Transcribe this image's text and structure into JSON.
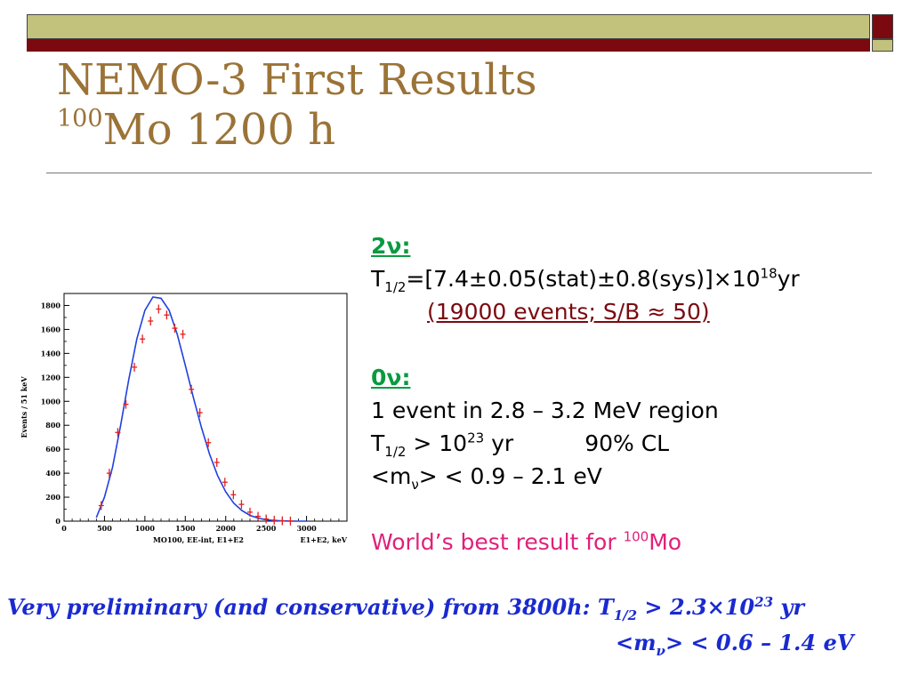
{
  "header": {
    "colors": {
      "olive": "#c3c27d",
      "maroon": "#7a0a10"
    }
  },
  "title": {
    "line1": "NEMO-3 First Results",
    "line2_sup": "100",
    "line2": "Mo 1200 h"
  },
  "two_nu": {
    "heading_num": "2",
    "heading_sym": "ν",
    "heading_colon": ":",
    "t_label": "T",
    "t_sub": "1/2",
    "t_value": "=[7.4±0.05(stat)±0.8(sys)]×10",
    "t_exp": "18",
    "t_unit": "yr",
    "events": "(19000 events; S/B ≈ 50)"
  },
  "zero_nu": {
    "heading_num": "0",
    "heading_sym": "ν",
    "heading_colon": ":",
    "events_line": "1 event in 2.8 – 3.2 MeV region",
    "t_label": "T",
    "t_sub": "1/2",
    "t_value": " > 10",
    "t_exp": "23",
    "t_unit": " yr",
    "cl": "90% CL",
    "m_open": "<m",
    "m_sub": "ν",
    "m_close": "> < 0.9 – 2.1 eV"
  },
  "world_best": {
    "text": "World’s best result for ",
    "sup": "100",
    "elem": "Mo"
  },
  "preliminary": {
    "line1_text": "Very preliminary (and conservative) from 3800h: T",
    "line1_sub": "1/2",
    "line1_value": " > 2.3×10",
    "line1_exp": "23",
    "line1_unit": " yr",
    "line2_open": "<m",
    "line2_sub": "ν",
    "line2_close": "> < 0.6 – 1.4 eV"
  },
  "chart_data": {
    "type": "scatter",
    "ylabel": "Events / 51 keV",
    "xlabel": "MO100, EE-int, E1+E2",
    "xlabel_right": "E1+E2, keV",
    "xlim": [
      0,
      3500
    ],
    "ylim": [
      0,
      1900
    ],
    "xticks": [
      0,
      500,
      1000,
      1500,
      2000,
      2500,
      3000
    ],
    "yticks": [
      0,
      200,
      400,
      600,
      800,
      1000,
      1200,
      1400,
      1600,
      1800
    ],
    "colors": {
      "data": "#e02020",
      "fit": "#2040e0"
    },
    "series": [
      {
        "role": "data",
        "x": [
          460,
          560,
          665,
          765,
          870,
          970,
          1070,
          1170,
          1270,
          1370,
          1470,
          1575,
          1680,
          1785,
          1890,
          1990,
          2095,
          2195,
          2300,
          2400,
          2500,
          2600,
          2700,
          2800
        ],
        "y": [
          130,
          400,
          740,
          975,
          1285,
          1520,
          1670,
          1770,
          1720,
          1610,
          1560,
          1100,
          905,
          655,
          490,
          325,
          220,
          140,
          75,
          40,
          18,
          8,
          3,
          1
        ]
      },
      {
        "role": "fit",
        "x": [
          400,
          500,
          600,
          700,
          800,
          900,
          1000,
          1100,
          1200,
          1300,
          1400,
          1500,
          1600,
          1700,
          1800,
          1900,
          2000,
          2100,
          2200,
          2300,
          2400,
          2500,
          2600,
          2700,
          2800,
          2900,
          3000
        ],
        "y": [
          30,
          200,
          450,
          800,
          1180,
          1520,
          1760,
          1870,
          1860,
          1760,
          1560,
          1300,
          1030,
          780,
          560,
          380,
          245,
          150,
          88,
          48,
          25,
          12,
          5,
          2,
          1,
          0,
          0
        ]
      }
    ]
  }
}
